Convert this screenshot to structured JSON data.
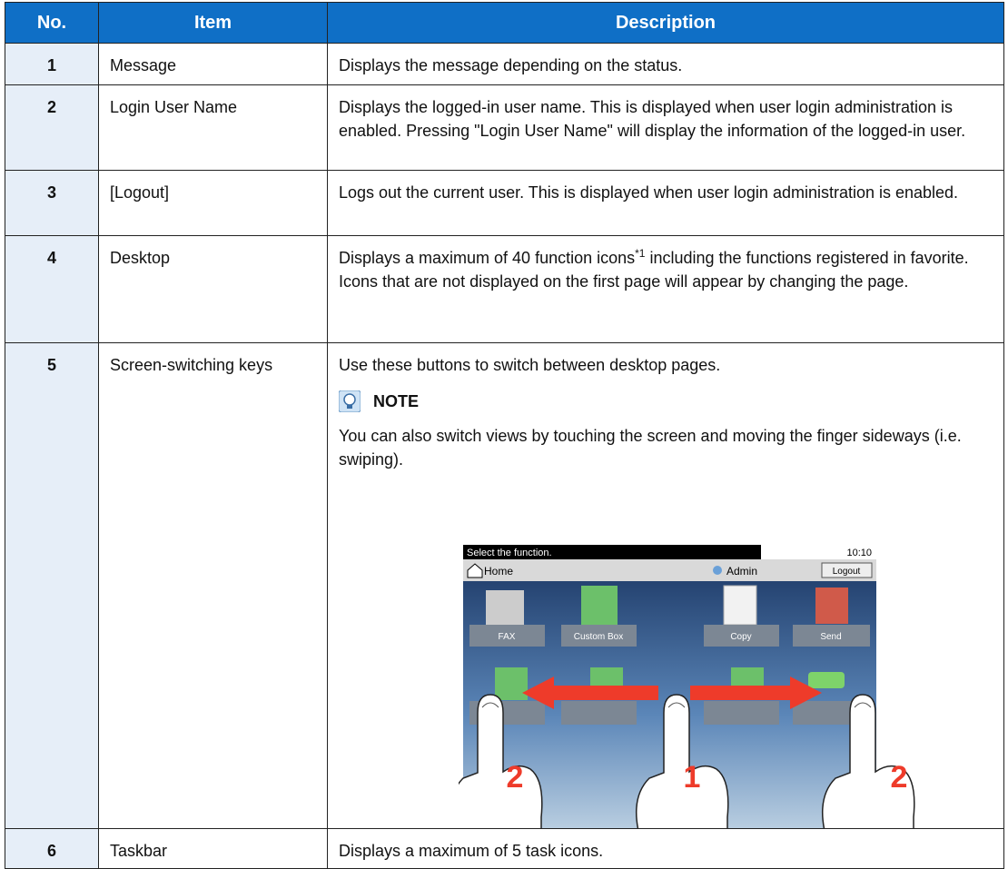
{
  "table": {
    "headers": [
      "No.",
      "Item",
      "Description"
    ],
    "rows": [
      {
        "no": "1",
        "item": "Message",
        "description": "Displays the message depending on the status."
      },
      {
        "no": "2",
        "item": "Login User Name",
        "description": "Displays the logged-in user name. This is displayed when user login administration is enabled. Pressing \"Login User Name\" will display the information of the logged-in user."
      },
      {
        "no": "3",
        "item": "[Logout]",
        "description": "Logs out the current user. This is displayed when user login administration is enabled."
      },
      {
        "no": "4",
        "item": "Desktop",
        "description": "Displays a maximum of 40 function icons",
        "footnote_mark": "*1",
        "description_rest": " including the functions registered in favorite. Icons that are not displayed on the first page will appear by changing the page."
      },
      {
        "no": "5",
        "item": "Screen-switching keys",
        "description": "Use these buttons to switch between desktop pages.",
        "note": {
          "heading": "NOTE",
          "text": "You can also switch views by touching the screen and moving the finger sideways (i.e. swiping)."
        },
        "illustration": {
          "message": "Select the function.",
          "time": "10:10",
          "home": "Home",
          "user": "Admin",
          "logout": "Logout",
          "icons": [
            "FAX",
            "Custom Box",
            "Copy",
            "Send"
          ],
          "touch_marks": [
            "2",
            "1",
            "2"
          ]
        }
      },
      {
        "no": "6",
        "item": "Taskbar",
        "description": "Displays a maximum of 5 task icons."
      }
    ]
  }
}
